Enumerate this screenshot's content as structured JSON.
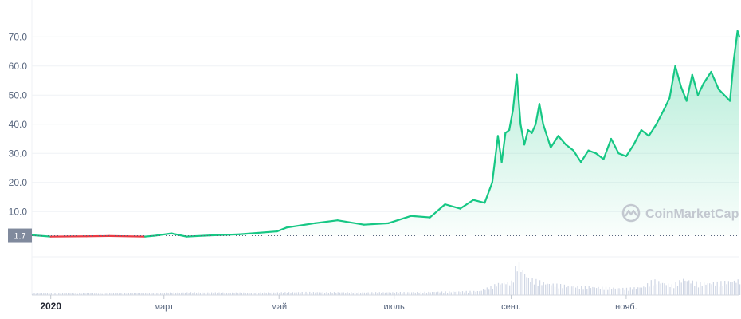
{
  "watermark": {
    "text": "CoinMarketCap",
    "icon": "coinmarketcap-logo-icon"
  },
  "colors": {
    "up": "#16c784",
    "down": "#ea3943",
    "grid": "#eff2f5",
    "text": "#58667e",
    "volume": "#cfd6e4",
    "ref_bg": "#808a9d"
  },
  "reference_label": "1.7",
  "chart_data": {
    "type": "area",
    "title": "",
    "xlabel": "",
    "ylabel": "",
    "ylim": [
      -5,
      75
    ],
    "y_ticks": [
      "10.0",
      "20.0",
      "30.0",
      "40.0",
      "50.0",
      "60.0",
      "70.0"
    ],
    "y_tick_values": [
      10,
      20,
      30,
      40,
      50,
      60,
      70
    ],
    "x_ticks": [
      {
        "label": "2020",
        "date": "2020-01-01",
        "bold": true
      },
      {
        "label": "март",
        "date": "2020-03-01",
        "bold": false
      },
      {
        "label": "май",
        "date": "2020-05-01",
        "bold": false
      },
      {
        "label": "июль",
        "date": "2020-07-01",
        "bold": false
      },
      {
        "label": "сент.",
        "date": "2020-09-01",
        "bold": false
      },
      {
        "label": "нояб.",
        "date": "2020-11-01",
        "bold": false
      }
    ],
    "x_range": [
      "2019-12-22",
      "2020-12-31"
    ],
    "reference_value": 1.7,
    "grid": true,
    "legend": "none",
    "series": [
      {
        "x": [
          "2019-12-22",
          "2020-01-01",
          "2020-01-20",
          "2020-02-01",
          "2020-02-20",
          "2020-02-25",
          "2020-03-05",
          "2020-03-13",
          "2020-03-25",
          "2020-04-10",
          "2020-04-30",
          "2020-05-05",
          "2020-05-20",
          "2020-06-01",
          "2020-06-15",
          "2020-06-28",
          "2020-07-10",
          "2020-07-20",
          "2020-07-28",
          "2020-08-05",
          "2020-08-12",
          "2020-08-18",
          "2020-08-22",
          "2020-08-25",
          "2020-08-27",
          "2020-08-29",
          "2020-08-31",
          "2020-09-02",
          "2020-09-04",
          "2020-09-06",
          "2020-09-08",
          "2020-09-10",
          "2020-09-12",
          "2020-09-14",
          "2020-09-16",
          "2020-09-18",
          "2020-09-22",
          "2020-09-26",
          "2020-09-30",
          "2020-10-04",
          "2020-10-08",
          "2020-10-12",
          "2020-10-16",
          "2020-10-20",
          "2020-10-24",
          "2020-10-28",
          "2020-11-01",
          "2020-11-05",
          "2020-11-09",
          "2020-11-13",
          "2020-11-17",
          "2020-11-21",
          "2020-11-24",
          "2020-11-27",
          "2020-11-30",
          "2020-12-03",
          "2020-12-06",
          "2020-12-09",
          "2020-12-12",
          "2020-12-16",
          "2020-12-20",
          "2020-12-23",
          "2020-12-26",
          "2020-12-28",
          "2020-12-30",
          "2020-12-31"
        ],
        "values": [
          1.9,
          1.4,
          1.5,
          1.6,
          1.4,
          1.7,
          2.5,
          1.4,
          1.8,
          2.2,
          3.2,
          4.5,
          6.0,
          7.0,
          5.5,
          6.0,
          8.5,
          8.0,
          12.5,
          11.0,
          14.0,
          13.0,
          20.0,
          36.0,
          27.0,
          37.0,
          38.0,
          45.0,
          57.0,
          40.0,
          33.0,
          38.0,
          37.0,
          40.0,
          47.0,
          40.0,
          32.0,
          36.0,
          33.0,
          31.0,
          27.0,
          31.0,
          30.0,
          28.0,
          35.0,
          30.0,
          29.0,
          33.0,
          38.0,
          36.0,
          40.0,
          45.0,
          49.0,
          60.0,
          53.0,
          48.0,
          57.0,
          50.0,
          54.0,
          58.0,
          52.0,
          50.0,
          48.0,
          62.0,
          72.0,
          70.0
        ]
      }
    ],
    "volume": {
      "x": [
        "2019-12-22",
        "2020-01-15",
        "2020-02-15",
        "2020-03-15",
        "2020-04-15",
        "2020-05-15",
        "2020-06-15",
        "2020-07-15",
        "2020-08-15",
        "2020-08-25",
        "2020-09-01",
        "2020-09-04",
        "2020-09-10",
        "2020-09-20",
        "2020-10-01",
        "2020-10-15",
        "2020-11-01",
        "2020-11-10",
        "2020-11-15",
        "2020-11-25",
        "2020-12-01",
        "2020-12-10",
        "2020-12-20",
        "2020-12-31"
      ],
      "values": [
        0.5,
        0.5,
        0.6,
        0.8,
        0.7,
        0.9,
        0.8,
        0.9,
        1.2,
        3.5,
        4.0,
        10.0,
        5.0,
        3.5,
        2.8,
        2.4,
        2.0,
        2.5,
        4.5,
        3.0,
        4.8,
        3.5,
        3.8,
        4.5
      ]
    }
  }
}
